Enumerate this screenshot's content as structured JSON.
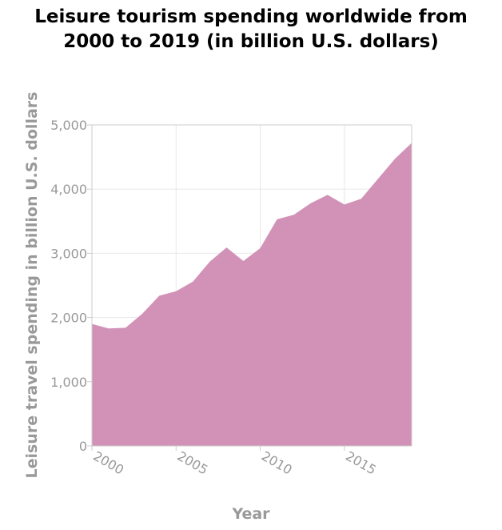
{
  "chart_data": {
    "type": "area",
    "title_lines": [
      "Leisure tourism spending worldwide from",
      "2000 to 2019 (in billion U.S. dollars)"
    ],
    "xlabel": "Year",
    "ylabel": "Leisure travel spending in billion U.S. dollars",
    "xlim": [
      2000,
      2019
    ],
    "ylim": [
      0,
      5000
    ],
    "x_ticks": [
      2000,
      2005,
      2010,
      2015
    ],
    "y_ticks": [
      0,
      1000,
      2000,
      3000,
      4000,
      5000
    ],
    "x_tick_labels": [
      "2000",
      "2005",
      "2010",
      "2015"
    ],
    "y_tick_labels": [
      "0",
      "1,000",
      "2,000",
      "3,000",
      "4,000",
      "5,000"
    ],
    "grid": true,
    "fill_color": "#d291b6",
    "series": [
      {
        "x": [
          2000,
          2001,
          2002,
          2003,
          2004,
          2005,
          2006,
          2007,
          2008,
          2009,
          2010,
          2011,
          2012,
          2013,
          2014,
          2015,
          2016,
          2017,
          2018,
          2019
        ],
        "values": [
          1900,
          1830,
          1840,
          2060,
          2340,
          2410,
          2560,
          2870,
          3090,
          2880,
          3080,
          3530,
          3600,
          3780,
          3910,
          3760,
          3850,
          4160,
          4470,
          4720
        ]
      }
    ]
  }
}
